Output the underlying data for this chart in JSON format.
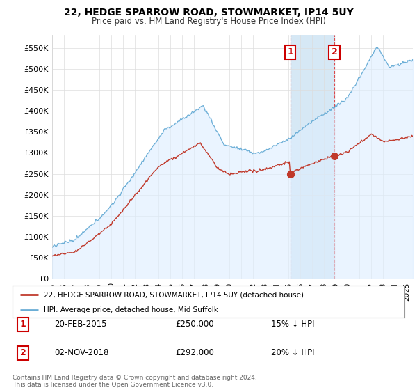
{
  "title": "22, HEDGE SPARROW ROAD, STOWMARKET, IP14 5UY",
  "subtitle": "Price paid vs. HM Land Registry's House Price Index (HPI)",
  "ylabel_ticks": [
    "£0",
    "£50K",
    "£100K",
    "£150K",
    "£200K",
    "£250K",
    "£300K",
    "£350K",
    "£400K",
    "£450K",
    "£500K",
    "£550K"
  ],
  "ytick_values": [
    0,
    50000,
    100000,
    150000,
    200000,
    250000,
    300000,
    350000,
    400000,
    450000,
    500000,
    550000
  ],
  "ylim": [
    0,
    580000
  ],
  "xlim_start": 1995.0,
  "xlim_end": 2025.5,
  "hpi_color": "#6baed6",
  "hpi_fill_color": "#ddeeff",
  "price_color": "#c0392b",
  "vspan_color": "#d6e8f5",
  "marker1_date": 2015.13,
  "marker1_price": 250000,
  "marker1_label": "1",
  "marker2_date": 2018.88,
  "marker2_price": 292000,
  "marker2_label": "2",
  "transaction1_date": "20-FEB-2015",
  "transaction1_price": "£250,000",
  "transaction1_pct": "15% ↓ HPI",
  "transaction2_date": "02-NOV-2018",
  "transaction2_price": "£292,000",
  "transaction2_pct": "20% ↓ HPI",
  "legend_line1": "22, HEDGE SPARROW ROAD, STOWMARKET, IP14 5UY (detached house)",
  "legend_line2": "HPI: Average price, detached house, Mid Suffolk",
  "footer": "Contains HM Land Registry data © Crown copyright and database right 2024.\nThis data is licensed under the Open Government Licence v3.0.",
  "background_color": "#ffffff",
  "grid_color": "#dddddd"
}
